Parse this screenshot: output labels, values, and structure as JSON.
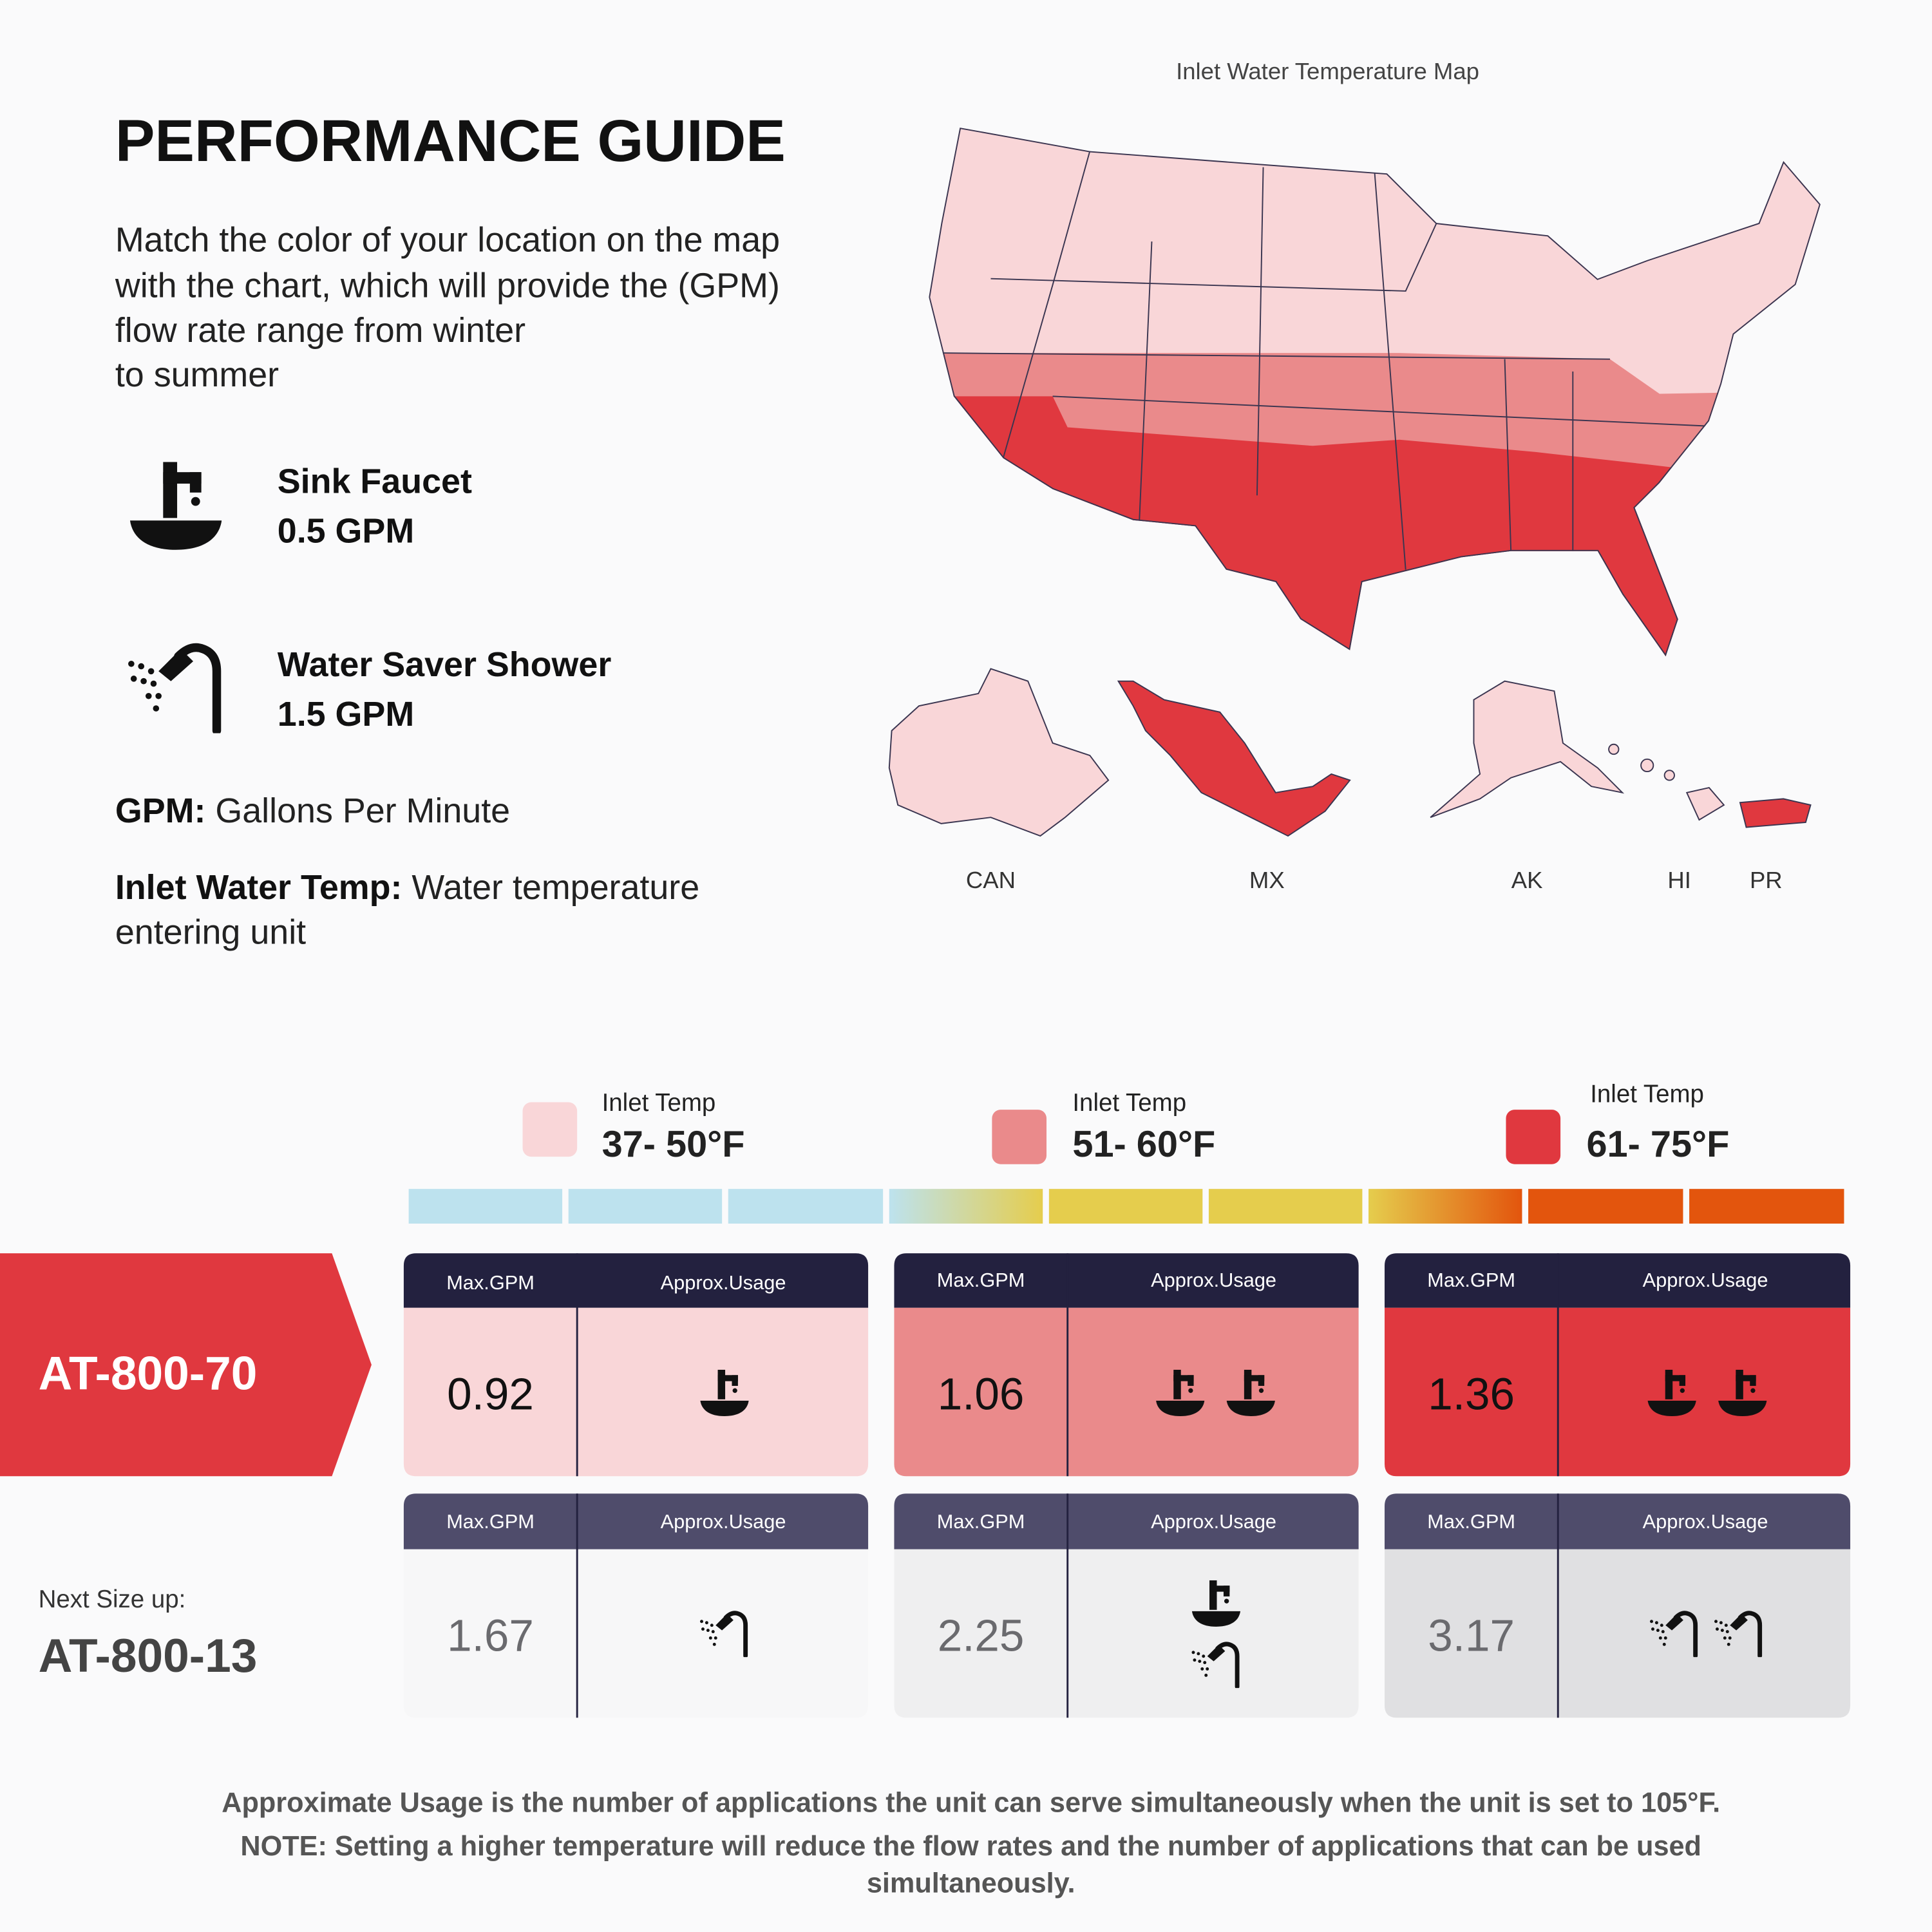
{
  "header": {
    "title": "PERFORMANCE GUIDE",
    "description": [
      "Match the color of your location on the map",
      "with the chart, which will provide the (GPM)",
      "flow rate range from winter",
      "to summer"
    ]
  },
  "fixtures": [
    {
      "name": "Sink Faucet",
      "flow": "0.5 GPM"
    },
    {
      "name": "Water Saver Shower",
      "flow": "1.5 GPM"
    }
  ],
  "definitions": [
    {
      "term": "GPM:",
      "lines": [
        "Gallons Per Minute"
      ]
    },
    {
      "term": "Inlet Water Temp:",
      "lines": [
        "Water temperature",
        "entering unit"
      ]
    }
  ],
  "map": {
    "title": "Inlet Water Temperature Map",
    "labels": [
      "CAN",
      "MX",
      "AK",
      "HI",
      "PR"
    ]
  },
  "temperature_ranges": [
    {
      "label": "Inlet Temp",
      "range": "37- 50°F"
    },
    {
      "label": "Inlet Temp",
      "range": "51- 60°F"
    },
    {
      "label": "Inlet Temp",
      "range": "61- 75°F"
    }
  ],
  "table": {
    "columns": [
      "Max.GPM",
      "Approx.Usage"
    ],
    "models": [
      {
        "name": "AT-800-70",
        "max_gpm": [
          0.92,
          1.06,
          1.36
        ]
      },
      {
        "caption": "Next Size up:",
        "name": "AT-800-13",
        "max_gpm": [
          1.67,
          2.25,
          3.17
        ]
      }
    ]
  },
  "footer": {
    "lines": [
      "Approximate Usage is the number of applications the unit can serve simultaneously when the unit is set to 105°F.",
      "NOTE: Setting a higher temperature will reduce the flow rates and the number of applications that can be used",
      "simultaneously."
    ]
  }
}
